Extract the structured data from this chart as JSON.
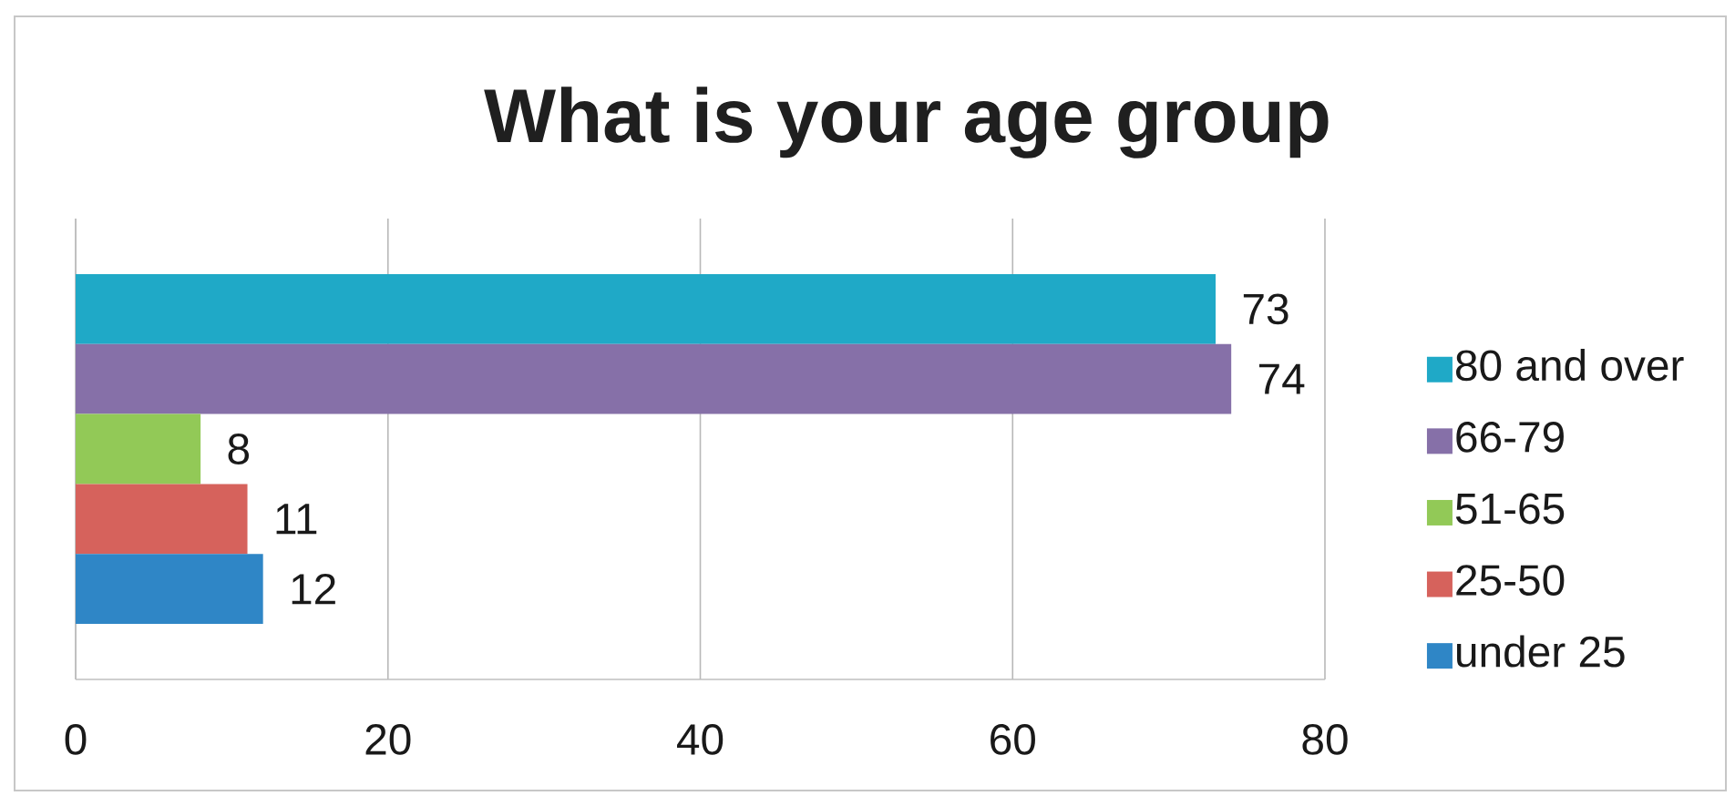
{
  "chart_data": {
    "type": "bar",
    "orientation": "horizontal",
    "title": "What is your age group",
    "categories": [
      null
    ],
    "series": [
      {
        "name": "80 and over",
        "color": "#1fa9c7",
        "values": [
          73
        ]
      },
      {
        "name": "66-79",
        "color": "#8670a8",
        "values": [
          74
        ]
      },
      {
        "name": "51-65",
        "color": "#92c957",
        "values": [
          8
        ]
      },
      {
        "name": "25-50",
        "color": "#d6625c",
        "values": [
          11
        ]
      },
      {
        "name": "under 25",
        "color": "#2f86c6",
        "values": [
          12
        ]
      }
    ],
    "xlim": [
      0,
      80
    ],
    "xticks": [
      0,
      20,
      40,
      60,
      80
    ],
    "grid": "x",
    "legend": "right",
    "data_labels": true
  }
}
